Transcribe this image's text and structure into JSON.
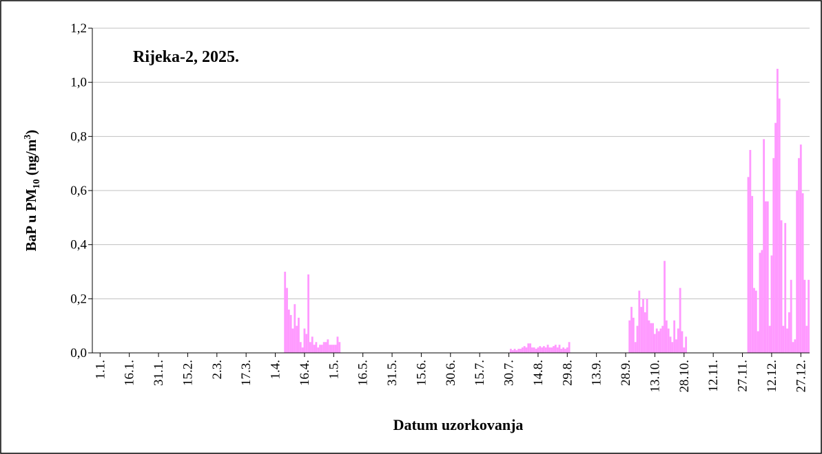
{
  "chart_data": {
    "type": "bar",
    "title": "Rijeka-2, 2025.",
    "xlabel": "Datum uzorkovanja",
    "ylabel_parts": [
      "BaP u PM",
      "10",
      " (ng/m",
      "3",
      ")"
    ],
    "color": "#ff99ff",
    "grid": true,
    "x": [
      96,
      97,
      98,
      99,
      100,
      101,
      102,
      103,
      104,
      105,
      106,
      107,
      108,
      109,
      110,
      111,
      112,
      113,
      114,
      115,
      116,
      117,
      118,
      119,
      120,
      121,
      122,
      123,
      124,
      212,
      213,
      214,
      215,
      216,
      217,
      218,
      219,
      220,
      221,
      222,
      223,
      224,
      225,
      226,
      227,
      228,
      229,
      230,
      231,
      232,
      233,
      234,
      235,
      236,
      237,
      238,
      239,
      240,
      241,
      242,
      273,
      274,
      275,
      276,
      277,
      278,
      279,
      280,
      281,
      282,
      283,
      284,
      285,
      286,
      287,
      288,
      289,
      290,
      291,
      292,
      293,
      294,
      295,
      296,
      297,
      298,
      299,
      300,
      301,
      302,
      334,
      335,
      336,
      337,
      338,
      339,
      340,
      341,
      342,
      343,
      344,
      345,
      346,
      347,
      348,
      349,
      350,
      351,
      352,
      353,
      354,
      355,
      356,
      357,
      358,
      359,
      360,
      361,
      362,
      363,
      364,
      365
    ],
    "values": [
      0.3,
      0.24,
      0.16,
      0.14,
      0.09,
      0.18,
      0.1,
      0.13,
      0.04,
      0.02,
      0.09,
      0.07,
      0.29,
      0.04,
      0.06,
      0.03,
      0.04,
      0.02,
      0.03,
      0.03,
      0.04,
      0.04,
      0.05,
      0.03,
      0.03,
      0.03,
      0.03,
      0.06,
      0.04,
      0.015,
      0.01,
      0.015,
      0.01,
      0.015,
      0.015,
      0.02,
      0.025,
      0.02,
      0.035,
      0.035,
      0.02,
      0.02,
      0.015,
      0.02,
      0.025,
      0.02,
      0.025,
      0.02,
      0.03,
      0.02,
      0.02,
      0.025,
      0.03,
      0.02,
      0.03,
      0.015,
      0.02,
      0.015,
      0.02,
      0.04,
      0.12,
      0.17,
      0.13,
      0.04,
      0.1,
      0.23,
      0.17,
      0.2,
      0.15,
      0.2,
      0.12,
      0.11,
      0.11,
      0.07,
      0.09,
      0.08,
      0.09,
      0.1,
      0.34,
      0.12,
      0.09,
      0.06,
      0.04,
      0.12,
      0.05,
      0.09,
      0.24,
      0.08,
      0.02,
      0.06,
      0.65,
      0.75,
      0.58,
      0.24,
      0.23,
      0.08,
      0.37,
      0.38,
      0.79,
      0.56,
      0.56,
      0.1,
      0.36,
      0.72,
      0.85,
      1.05,
      0.94,
      0.49,
      0.1,
      0.48,
      0.09,
      0.15,
      0.27,
      0.04,
      0.05,
      0.6,
      0.72,
      0.77,
      0.59,
      0.27,
      0.1,
      0.27
    ],
    "xlim": [
      -3,
      365.5
    ],
    "xticks": [
      {
        "value": 1,
        "label": "1.1."
      },
      {
        "value": 16,
        "label": "16.1."
      },
      {
        "value": 31,
        "label": "31.1."
      },
      {
        "value": 46,
        "label": "15.2."
      },
      {
        "value": 61,
        "label": "2.3."
      },
      {
        "value": 76,
        "label": "17.3."
      },
      {
        "value": 91,
        "label": "1.4."
      },
      {
        "value": 106,
        "label": "16.4."
      },
      {
        "value": 121,
        "label": "1.5."
      },
      {
        "value": 136,
        "label": "16.5."
      },
      {
        "value": 151,
        "label": "31.5."
      },
      {
        "value": 166,
        "label": "15.6."
      },
      {
        "value": 181,
        "label": "30.6."
      },
      {
        "value": 196,
        "label": "15.7."
      },
      {
        "value": 211,
        "label": "30.7."
      },
      {
        "value": 226,
        "label": "14.8."
      },
      {
        "value": 241,
        "label": "29.8."
      },
      {
        "value": 256,
        "label": "13.9."
      },
      {
        "value": 271,
        "label": "28.9."
      },
      {
        "value": 286,
        "label": "13.10."
      },
      {
        "value": 301,
        "label": "28.10."
      },
      {
        "value": 316,
        "label": "12.11."
      },
      {
        "value": 331,
        "label": "27.11."
      },
      {
        "value": 346,
        "label": "12.12."
      },
      {
        "value": 361,
        "label": "27.12."
      }
    ],
    "ylim": [
      0,
      1.2
    ],
    "yticks": [
      {
        "value": 0,
        "label": "0,0"
      },
      {
        "value": 0.2,
        "label": "0,2"
      },
      {
        "value": 0.4,
        "label": "0,4"
      },
      {
        "value": 0.6,
        "label": "0,6"
      },
      {
        "value": 0.8,
        "label": "0,8"
      },
      {
        "value": 1.0,
        "label": "1,0"
      },
      {
        "value": 1.2,
        "label": "1,2"
      }
    ]
  }
}
